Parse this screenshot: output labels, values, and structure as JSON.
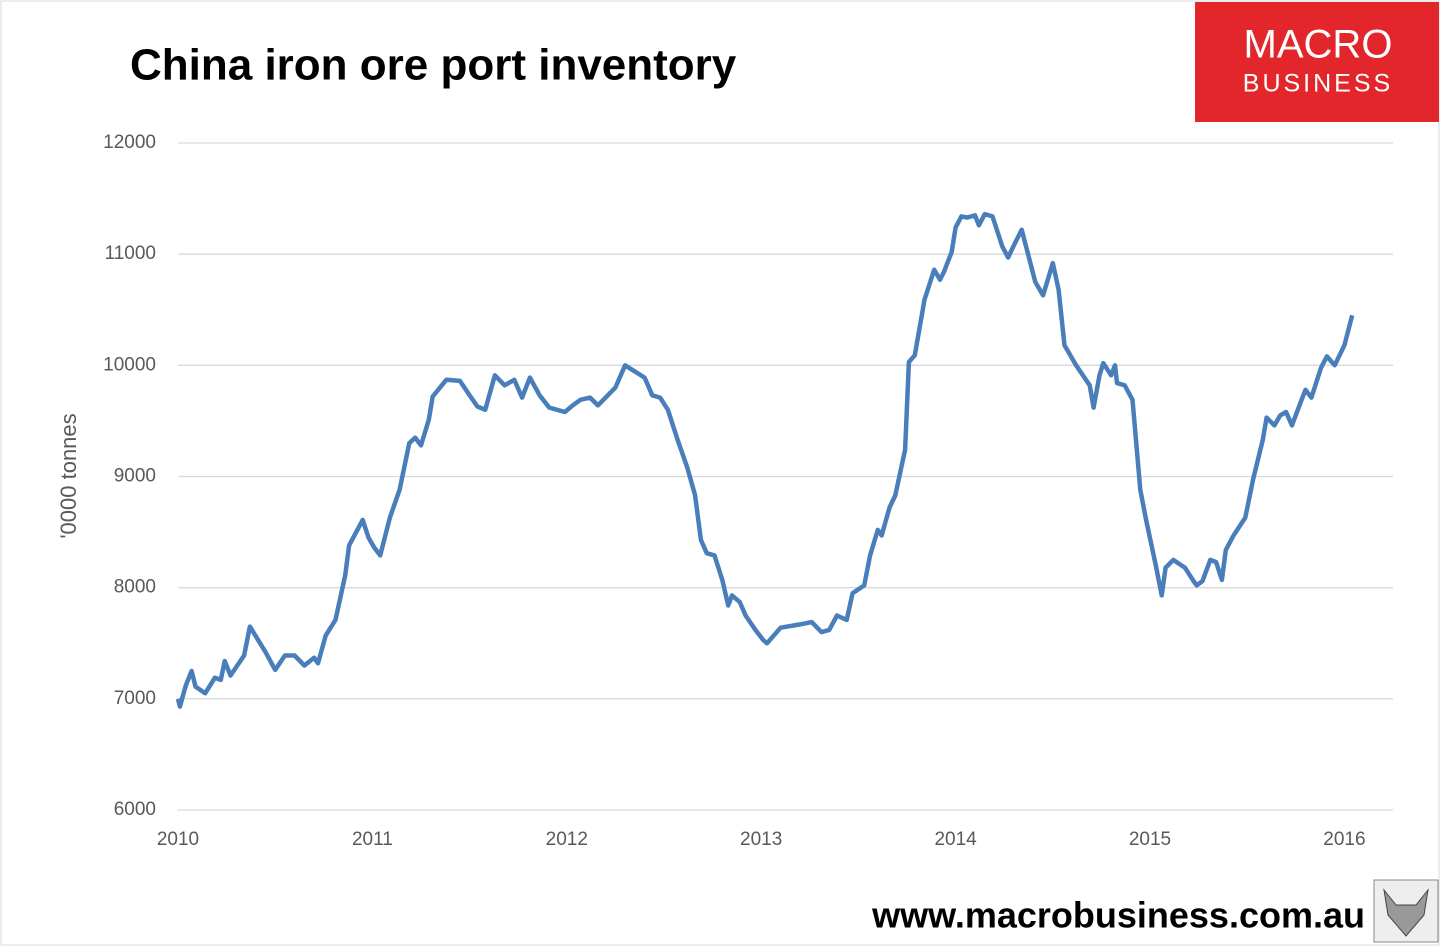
{
  "chart_data": {
    "type": "line",
    "title": "China iron ore port inventory",
    "y_label": "'0000 tonnes",
    "logo_top": "MACRO",
    "logo_bottom": "BUSINESS",
    "footer": "www.macrobusiness.com.au",
    "xlim": [
      2010,
      2016.25
    ],
    "xticks": [
      2010,
      2011,
      2012,
      2013,
      2014,
      2015,
      2016
    ],
    "ylim": [
      6000,
      12000
    ],
    "yticks": [
      6000,
      7000,
      8000,
      9000,
      10000,
      11000,
      12000
    ],
    "grid": true,
    "series": [
      {
        "name": "China iron ore port inventory",
        "color": "#4a7ebb",
        "x": [
          2010.0,
          2010.01,
          2010.04,
          2010.07,
          2010.09,
          2010.14,
          2010.19,
          2010.22,
          2010.24,
          2010.27,
          2010.34,
          2010.37,
          2010.45,
          2010.5,
          2010.55,
          2010.6,
          2010.65,
          2010.7,
          2010.72,
          2010.76,
          2010.81,
          2010.86,
          2010.88,
          2010.95,
          2010.98,
          2011.01,
          2011.04,
          2011.09,
          2011.14,
          2011.19,
          2011.22,
          2011.25,
          2011.29,
          2011.31,
          2011.38,
          2011.45,
          2011.5,
          2011.54,
          2011.58,
          2011.63,
          2011.68,
          2011.73,
          2011.77,
          2011.81,
          2011.86,
          2011.91,
          2011.99,
          2012.03,
          2012.07,
          2012.12,
          2012.16,
          2012.25,
          2012.3,
          2012.4,
          2012.44,
          2012.48,
          2012.52,
          2012.57,
          2012.62,
          2012.66,
          2012.69,
          2012.72,
          2012.76,
          2012.8,
          2012.83,
          2012.85,
          2012.89,
          2012.92,
          2012.97,
          2013.01,
          2013.03,
          2013.1,
          2013.2,
          2013.26,
          2013.31,
          2013.35,
          2013.39,
          2013.44,
          2013.47,
          2013.53,
          2013.56,
          2013.6,
          2013.62,
          2013.66,
          2013.69,
          2013.74,
          2013.76,
          2013.79,
          2013.84,
          2013.89,
          2013.92,
          2013.94,
          2013.98,
          2014.0,
          2014.03,
          2014.06,
          2014.1,
          2014.12,
          2014.15,
          2014.19,
          2014.24,
          2014.27,
          2014.3,
          2014.34,
          2014.38,
          2014.41,
          2014.45,
          2014.5,
          2014.53,
          2014.56,
          2014.62,
          2014.69,
          2014.71,
          2014.74,
          2014.76,
          2014.8,
          2014.82,
          2014.83,
          2014.87,
          2014.91,
          2014.95,
          2014.98,
          2015.03,
          2015.06,
          2015.08,
          2015.12,
          2015.18,
          2015.22,
          2015.24,
          2015.27,
          2015.31,
          2015.34,
          2015.37,
          2015.39,
          2015.43,
          2015.49,
          2015.53,
          2015.58,
          2015.6,
          2015.64,
          2015.67,
          2015.7,
          2015.73,
          2015.78,
          2015.8,
          2015.83,
          2015.88,
          2015.91,
          2015.95,
          2016.0,
          2016.04
        ],
        "values": [
          7000,
          6930,
          7120,
          7250,
          7110,
          7050,
          7190,
          7170,
          7340,
          7210,
          7390,
          7650,
          7420,
          7260,
          7390,
          7390,
          7300,
          7370,
          7320,
          7570,
          7710,
          8110,
          8380,
          8610,
          8450,
          8360,
          8290,
          8630,
          8880,
          9300,
          9350,
          9280,
          9510,
          9720,
          9870,
          9860,
          9730,
          9630,
          9600,
          9910,
          9820,
          9870,
          9710,
          9890,
          9730,
          9620,
          9580,
          9640,
          9690,
          9710,
          9640,
          9800,
          10000,
          9890,
          9730,
          9710,
          9600,
          9330,
          9080,
          8830,
          8430,
          8310,
          8290,
          8070,
          7840,
          7930,
          7870,
          7750,
          7620,
          7530,
          7500,
          7640,
          7670,
          7690,
          7600,
          7620,
          7750,
          7710,
          7950,
          8020,
          8290,
          8520,
          8470,
          8720,
          8830,
          9240,
          10030,
          10090,
          10590,
          10860,
          10770,
          10840,
          11020,
          11240,
          11340,
          11330,
          11350,
          11260,
          11360,
          11340,
          11070,
          10970,
          11080,
          11220,
          10950,
          10750,
          10630,
          10920,
          10680,
          10180,
          10000,
          9820,
          9620,
          9910,
          10020,
          9910,
          10000,
          9840,
          9820,
          9690,
          8880,
          8610,
          8200,
          7930,
          8180,
          8250,
          8180,
          8070,
          8020,
          8060,
          8250,
          8230,
          8070,
          8340,
          8470,
          8630,
          8970,
          9330,
          9530,
          9460,
          9550,
          9580,
          9460,
          9690,
          9780,
          9710,
          9980,
          10080,
          10000,
          10180,
          10450
        ]
      }
    ]
  }
}
